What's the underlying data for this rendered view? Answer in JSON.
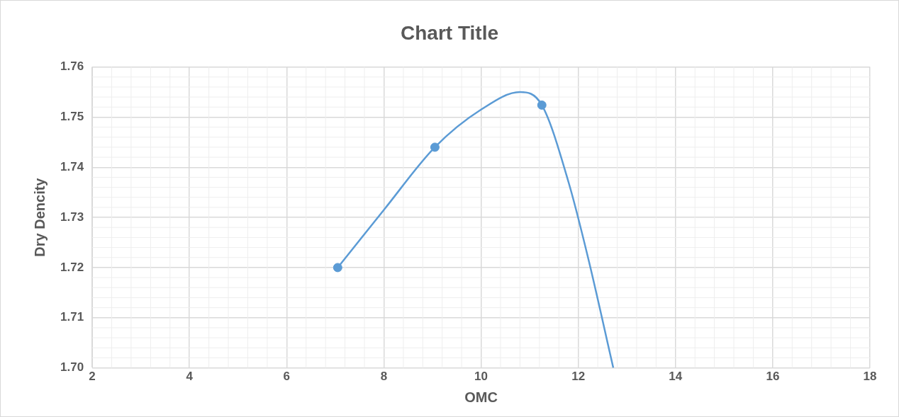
{
  "chart_data": {
    "type": "scatter",
    "title": "Chart Title",
    "xlabel": "OMC",
    "ylabel": "Dry Dencity",
    "xlim": [
      2,
      18
    ],
    "xticks": [
      2,
      4,
      6,
      8,
      10,
      12,
      14,
      16,
      18
    ],
    "ylim": [
      1.7,
      1.76
    ],
    "yticks": [
      {
        "value": 1.7,
        "label": "1.70"
      },
      {
        "value": 1.71,
        "label": "1.71"
      },
      {
        "value": 1.72,
        "label": "1.72"
      },
      {
        "value": 1.73,
        "label": "1.73"
      },
      {
        "value": 1.74,
        "label": "1.74"
      },
      {
        "value": 1.75,
        "label": "1.75"
      },
      {
        "value": 1.76,
        "label": "1.76"
      }
    ],
    "grid": true,
    "legend": false,
    "series": [
      {
        "type": "line",
        "color": "#5b9bd5",
        "marker": "none",
        "x": [
          7.05,
          8,
          9.05,
          10,
          10.8,
          11.25,
          11.8,
          12.2,
          12.72
        ],
        "values": [
          1.72,
          1.7315,
          1.744,
          1.7515,
          1.755,
          1.7524,
          1.737,
          1.722,
          1.7
        ]
      },
      {
        "type": "scatter",
        "color": "#5b9bd5",
        "marker": "circle",
        "x": [
          7.05,
          9.05,
          11.25
        ],
        "values": [
          1.72,
          1.744,
          1.7524
        ]
      }
    ]
  }
}
